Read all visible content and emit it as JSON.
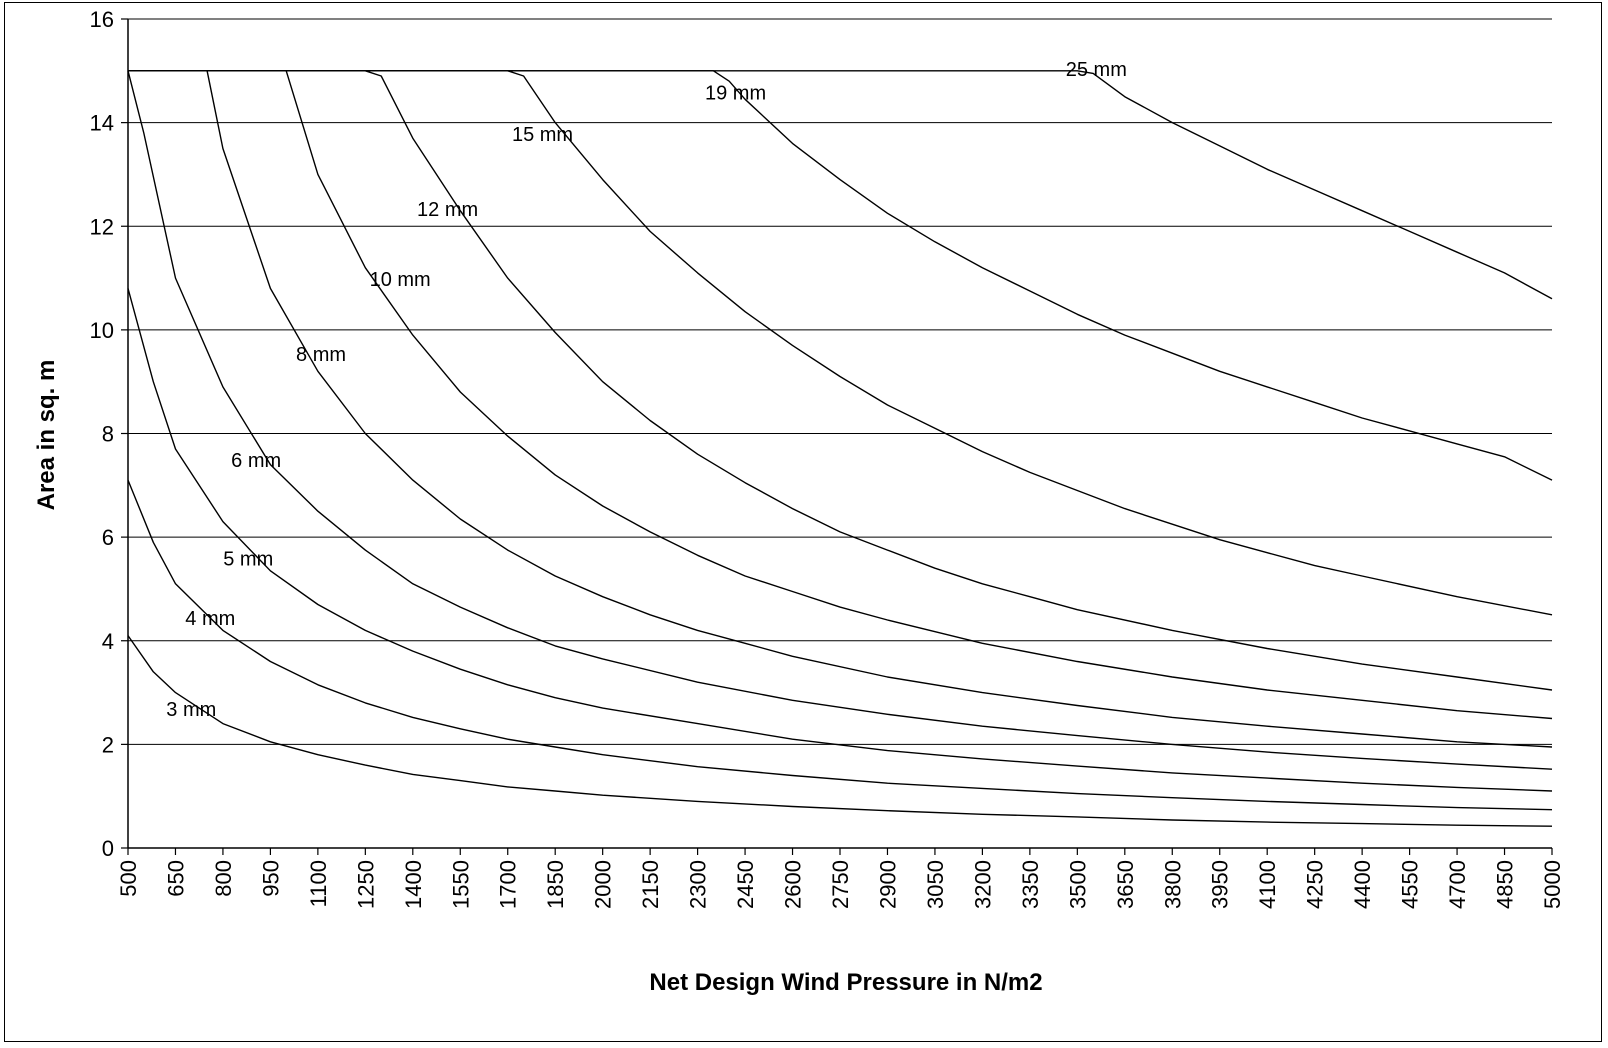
{
  "chart_data": {
    "type": "line",
    "title": "",
    "xlabel": "Net Design Wind Pressure in N/m2",
    "ylabel": "Area in sq. m",
    "xlim": [
      500,
      5000
    ],
    "ylim": [
      0,
      16
    ],
    "grid": "horizontal",
    "yticks": [
      "0",
      "2",
      "4",
      "6",
      "8",
      "10",
      "12",
      "14",
      "16"
    ],
    "xticks": [
      "500",
      "650",
      "800",
      "950",
      "1100",
      "1250",
      "1400",
      "1550",
      "1700",
      "1850",
      "2000",
      "2150",
      "2300",
      "2450",
      "2600",
      "2750",
      "2900",
      "3050",
      "3200",
      "3350",
      "3500",
      "3650",
      "3800",
      "3950",
      "4100",
      "4250",
      "4400",
      "4550",
      "4700",
      "4850",
      "5000"
    ],
    "cap": 15,
    "series": [
      {
        "name": "3 mm",
        "points": [
          [
            500,
            4.1
          ],
          [
            580,
            3.4
          ],
          [
            650,
            3.0
          ],
          [
            800,
            2.4
          ],
          [
            950,
            2.05
          ],
          [
            1100,
            1.8
          ],
          [
            1250,
            1.6
          ],
          [
            1400,
            1.42
          ],
          [
            1550,
            1.3
          ],
          [
            1700,
            1.18
          ],
          [
            1850,
            1.1
          ],
          [
            2000,
            1.02
          ],
          [
            2300,
            0.9
          ],
          [
            2600,
            0.8
          ],
          [
            2900,
            0.72
          ],
          [
            3200,
            0.65
          ],
          [
            3500,
            0.6
          ],
          [
            3800,
            0.54
          ],
          [
            4100,
            0.5
          ],
          [
            4400,
            0.47
          ],
          [
            4700,
            0.44
          ],
          [
            5000,
            0.42
          ]
        ]
      },
      {
        "name": "4 mm",
        "points": [
          [
            500,
            7.1
          ],
          [
            580,
            5.9
          ],
          [
            650,
            5.1
          ],
          [
            800,
            4.2
          ],
          [
            950,
            3.6
          ],
          [
            1100,
            3.15
          ],
          [
            1250,
            2.8
          ],
          [
            1400,
            2.52
          ],
          [
            1550,
            2.3
          ],
          [
            1700,
            2.1
          ],
          [
            1850,
            1.95
          ],
          [
            2000,
            1.8
          ],
          [
            2300,
            1.57
          ],
          [
            2600,
            1.4
          ],
          [
            2900,
            1.25
          ],
          [
            3200,
            1.15
          ],
          [
            3500,
            1.05
          ],
          [
            3800,
            0.97
          ],
          [
            4100,
            0.9
          ],
          [
            4400,
            0.84
          ],
          [
            4700,
            0.78
          ],
          [
            5000,
            0.74
          ]
        ]
      },
      {
        "name": "5 mm",
        "points": [
          [
            500,
            10.8
          ],
          [
            580,
            9.0
          ],
          [
            650,
            7.7
          ],
          [
            800,
            6.3
          ],
          [
            950,
            5.35
          ],
          [
            1100,
            4.7
          ],
          [
            1250,
            4.2
          ],
          [
            1400,
            3.8
          ],
          [
            1550,
            3.45
          ],
          [
            1700,
            3.15
          ],
          [
            1850,
            2.9
          ],
          [
            2000,
            2.7
          ],
          [
            2300,
            2.4
          ],
          [
            2600,
            2.1
          ],
          [
            2900,
            1.88
          ],
          [
            3200,
            1.72
          ],
          [
            3500,
            1.58
          ],
          [
            3800,
            1.45
          ],
          [
            4100,
            1.35
          ],
          [
            4400,
            1.25
          ],
          [
            4700,
            1.17
          ],
          [
            5000,
            1.1
          ]
        ]
      },
      {
        "name": "6 mm",
        "points": [
          [
            500,
            15.0
          ],
          [
            550,
            13.8
          ],
          [
            650,
            11.0
          ],
          [
            800,
            8.9
          ],
          [
            950,
            7.4
          ],
          [
            1100,
            6.5
          ],
          [
            1250,
            5.75
          ],
          [
            1400,
            5.1
          ],
          [
            1550,
            4.65
          ],
          [
            1700,
            4.25
          ],
          [
            1850,
            3.9
          ],
          [
            2000,
            3.65
          ],
          [
            2300,
            3.2
          ],
          [
            2600,
            2.85
          ],
          [
            2900,
            2.58
          ],
          [
            3200,
            2.35
          ],
          [
            3500,
            2.17
          ],
          [
            3800,
            2.0
          ],
          [
            4100,
            1.85
          ],
          [
            4400,
            1.73
          ],
          [
            4700,
            1.62
          ],
          [
            5000,
            1.52
          ]
        ]
      },
      {
        "name": "8 mm",
        "points": [
          [
            500,
            15.0
          ],
          [
            750,
            15.0
          ],
          [
            800,
            13.5
          ],
          [
            950,
            10.8
          ],
          [
            1100,
            9.2
          ],
          [
            1250,
            8.0
          ],
          [
            1400,
            7.1
          ],
          [
            1550,
            6.35
          ],
          [
            1700,
            5.75
          ],
          [
            1850,
            5.25
          ],
          [
            2000,
            4.85
          ],
          [
            2150,
            4.5
          ],
          [
            2300,
            4.2
          ],
          [
            2450,
            3.95
          ],
          [
            2600,
            3.7
          ],
          [
            2900,
            3.3
          ],
          [
            3200,
            3.0
          ],
          [
            3500,
            2.75
          ],
          [
            3800,
            2.52
          ],
          [
            4100,
            2.35
          ],
          [
            4400,
            2.2
          ],
          [
            4700,
            2.05
          ],
          [
            5000,
            1.95
          ]
        ]
      },
      {
        "name": "10 mm",
        "points": [
          [
            500,
            15.0
          ],
          [
            1000,
            15.0
          ],
          [
            1100,
            13.0
          ],
          [
            1250,
            11.2
          ],
          [
            1400,
            9.9
          ],
          [
            1550,
            8.8
          ],
          [
            1700,
            7.95
          ],
          [
            1850,
            7.2
          ],
          [
            2000,
            6.6
          ],
          [
            2150,
            6.1
          ],
          [
            2300,
            5.65
          ],
          [
            2450,
            5.25
          ],
          [
            2600,
            4.95
          ],
          [
            2750,
            4.65
          ],
          [
            2900,
            4.4
          ],
          [
            3200,
            3.95
          ],
          [
            3500,
            3.6
          ],
          [
            3800,
            3.3
          ],
          [
            4100,
            3.05
          ],
          [
            4400,
            2.85
          ],
          [
            4700,
            2.65
          ],
          [
            5000,
            2.5
          ]
        ]
      },
      {
        "name": "12 mm",
        "points": [
          [
            500,
            15.0
          ],
          [
            1250,
            15.0
          ],
          [
            1300,
            14.9
          ],
          [
            1400,
            13.7
          ],
          [
            1550,
            12.3
          ],
          [
            1700,
            11.0
          ],
          [
            1850,
            9.95
          ],
          [
            2000,
            9.0
          ],
          [
            2150,
            8.25
          ],
          [
            2300,
            7.6
          ],
          [
            2450,
            7.05
          ],
          [
            2600,
            6.55
          ],
          [
            2750,
            6.1
          ],
          [
            2900,
            5.75
          ],
          [
            3050,
            5.4
          ],
          [
            3200,
            5.1
          ],
          [
            3350,
            4.85
          ],
          [
            3500,
            4.6
          ],
          [
            3800,
            4.2
          ],
          [
            4100,
            3.85
          ],
          [
            4400,
            3.55
          ],
          [
            4700,
            3.3
          ],
          [
            5000,
            3.05
          ]
        ]
      },
      {
        "name": "15 mm",
        "points": [
          [
            500,
            15.0
          ],
          [
            1700,
            15.0
          ],
          [
            1750,
            14.9
          ],
          [
            1850,
            14.0
          ],
          [
            2000,
            12.9
          ],
          [
            2150,
            11.9
          ],
          [
            2300,
            11.1
          ],
          [
            2450,
            10.35
          ],
          [
            2600,
            9.7
          ],
          [
            2750,
            9.1
          ],
          [
            2900,
            8.55
          ],
          [
            3050,
            8.1
          ],
          [
            3200,
            7.65
          ],
          [
            3350,
            7.25
          ],
          [
            3500,
            6.9
          ],
          [
            3650,
            6.55
          ],
          [
            3800,
            6.25
          ],
          [
            3950,
            5.95
          ],
          [
            4100,
            5.7
          ],
          [
            4250,
            5.45
          ],
          [
            4400,
            5.25
          ],
          [
            4700,
            4.85
          ],
          [
            5000,
            4.5
          ]
        ]
      },
      {
        "name": "19 mm",
        "points": [
          [
            500,
            15.0
          ],
          [
            2350,
            15.0
          ],
          [
            2400,
            14.8
          ],
          [
            2450,
            14.45
          ],
          [
            2600,
            13.6
          ],
          [
            2750,
            12.9
          ],
          [
            2900,
            12.25
          ],
          [
            3050,
            11.7
          ],
          [
            3200,
            11.2
          ],
          [
            3350,
            10.75
          ],
          [
            3500,
            10.3
          ],
          [
            3650,
            9.9
          ],
          [
            3800,
            9.55
          ],
          [
            3950,
            9.2
          ],
          [
            4100,
            8.9
          ],
          [
            4250,
            8.6
          ],
          [
            4400,
            8.3
          ],
          [
            4550,
            8.05
          ],
          [
            4700,
            7.8
          ],
          [
            4850,
            7.55
          ],
          [
            5000,
            7.1
          ]
        ]
      },
      {
        "name": "25 mm",
        "points": [
          [
            500,
            15.0
          ],
          [
            3500,
            15.0
          ],
          [
            3550,
            14.95
          ],
          [
            3650,
            14.5
          ],
          [
            3800,
            14.0
          ],
          [
            3950,
            13.55
          ],
          [
            4100,
            13.1
          ],
          [
            4250,
            12.7
          ],
          [
            4400,
            12.3
          ],
          [
            4550,
            11.9
          ],
          [
            4700,
            11.5
          ],
          [
            4850,
            11.1
          ],
          [
            5000,
            10.6
          ]
        ]
      }
    ],
    "curve_labels": [
      {
        "text": "3 mm",
        "x": 700,
        "y": 2.55
      },
      {
        "text": "4 mm",
        "x": 760,
        "y": 4.3
      },
      {
        "text": "5 mm",
        "x": 880,
        "y": 5.45
      },
      {
        "text": "6 mm",
        "x": 905,
        "y": 7.35
      },
      {
        "text": "8 mm",
        "x": 1110,
        "y": 9.4
      },
      {
        "text": "10 mm",
        "x": 1360,
        "y": 10.85
      },
      {
        "text": "12 mm",
        "x": 1510,
        "y": 12.2
      },
      {
        "text": "15 mm",
        "x": 1810,
        "y": 13.65
      },
      {
        "text": "19 mm",
        "x": 2420,
        "y": 14.45
      },
      {
        "text": "25 mm",
        "x": 3560,
        "y": 14.9
      }
    ]
  }
}
